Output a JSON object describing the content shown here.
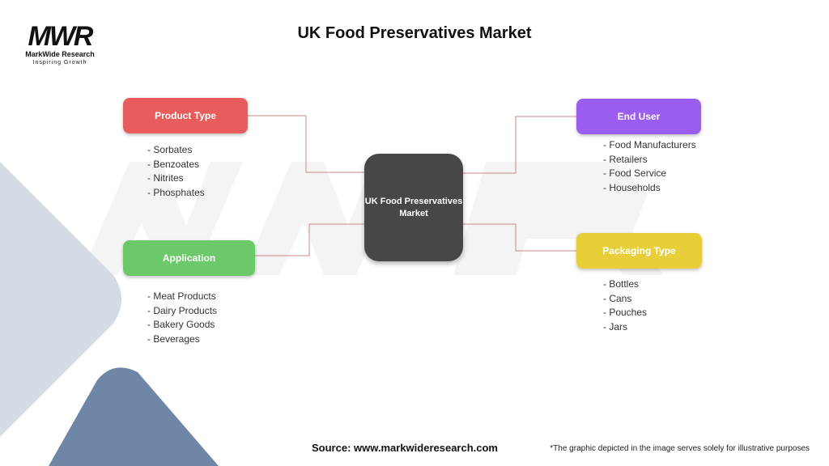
{
  "title": "UK Food Preservatives Market",
  "logo": {
    "mark": "MWR",
    "name": "MarkWide Research",
    "tagline": "Inspiring Growth"
  },
  "center": "UK Food Preservatives Market",
  "branches": [
    {
      "label": "Product Type",
      "color": "#e85c5c",
      "items": [
        "- Sorbates",
        "- Benzoates",
        "- Nitrites",
        "- Phosphates"
      ]
    },
    {
      "label": "Application",
      "color": "#6cc96a",
      "items": [
        "- Meat Products",
        "- Dairy Products",
        "- Bakery Goods",
        "- Beverages"
      ]
    },
    {
      "label": "End User",
      "color": "#9b5cf0",
      "items": [
        "- Food Manufacturers",
        "- Retailers",
        "- Food Service",
        "- Households"
      ]
    },
    {
      "label": "Packaging Type",
      "color": "#e8cf3a",
      "items": [
        "- Bottles",
        "- Cans",
        "- Pouches",
        "- Jars"
      ]
    }
  ],
  "footer": {
    "source": "Source: www.markwideresearch.com",
    "note": "*The graphic depicted in the image serves solely for illustrative purposes"
  }
}
